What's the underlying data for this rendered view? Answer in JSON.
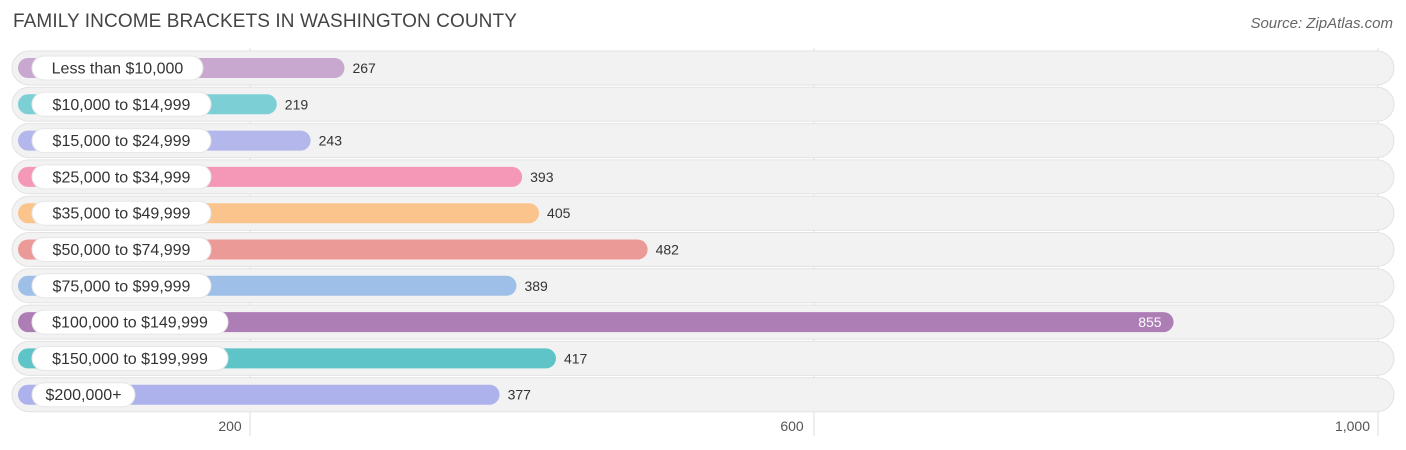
{
  "title": "FAMILY INCOME BRACKETS IN WASHINGTON COUNTY",
  "source": "Source: ZipAtlas.com",
  "chart_data": {
    "type": "bar",
    "orientation": "horizontal",
    "title": "FAMILY INCOME BRACKETS IN WASHINGTON COUNTY",
    "categories": [
      "Less than $10,000",
      "$10,000 to $14,999",
      "$15,000 to $24,999",
      "$25,000 to $34,999",
      "$35,000 to $49,999",
      "$50,000 to $74,999",
      "$75,000 to $99,999",
      "$100,000 to $149,999",
      "$150,000 to $199,999",
      "$200,000+"
    ],
    "values": [
      267,
      219,
      243,
      393,
      405,
      482,
      389,
      855,
      417,
      377
    ],
    "value_labels": [
      "267",
      "219",
      "243",
      "393",
      "405",
      "482",
      "389",
      "855",
      "417",
      "377"
    ],
    "colors": [
      "#c9a8d0",
      "#7dcfd6",
      "#b3b7ec",
      "#f597b7",
      "#fac48c",
      "#ec9a98",
      "#9ebfe8",
      "#ad7db6",
      "#5ec4c8",
      "#adb1ec"
    ],
    "xticks": [
      200,
      600,
      1000
    ],
    "xtick_labels": [
      "200",
      "600",
      "1,000"
    ],
    "xlim": [
      50,
      1000
    ],
    "grid": true
  }
}
